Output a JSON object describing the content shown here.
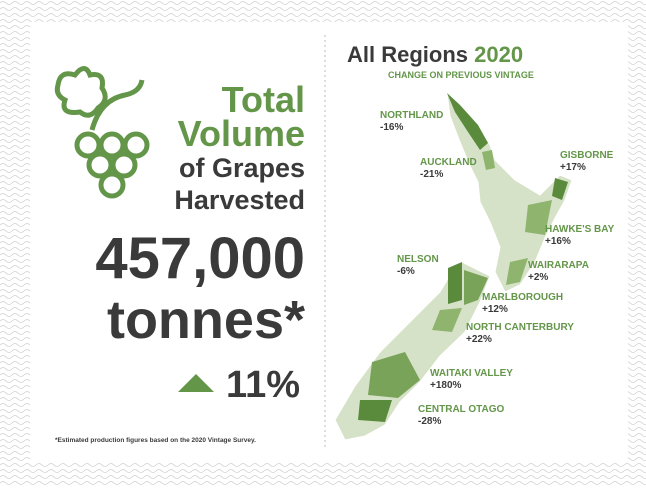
{
  "left": {
    "title_line1": "Total",
    "title_line2": "Volume",
    "title_line3": "of Grapes",
    "title_line4": "Harvested",
    "volume": "457,000",
    "unit": "tonnes*",
    "change": "11%",
    "footnote": "*Estimated production figures based on the 2020 Vintage Survey."
  },
  "right": {
    "title": "All Regions",
    "year": "2020",
    "subtitle": "CHANGE ON PREVIOUS VINTAGE",
    "regions": [
      {
        "name": "NORTHLAND",
        "change": "-16%"
      },
      {
        "name": "AUCKLAND",
        "change": "-21%"
      },
      {
        "name": "GISBORNE",
        "change": "+17%"
      },
      {
        "name": "HAWKE'S BAY",
        "change": "+16%"
      },
      {
        "name": "WAIRARAPA",
        "change": "+2%"
      },
      {
        "name": "NELSON",
        "change": "-6%"
      },
      {
        "name": "MARLBOROUGH",
        "change": "+12%"
      },
      {
        "name": "NORTH CANTERBURY",
        "change": "+22%"
      },
      {
        "name": "WAITAKI VALLEY",
        "change": "+180%"
      },
      {
        "name": "CENTRAL OTAGO",
        "change": "-28%"
      }
    ]
  }
}
